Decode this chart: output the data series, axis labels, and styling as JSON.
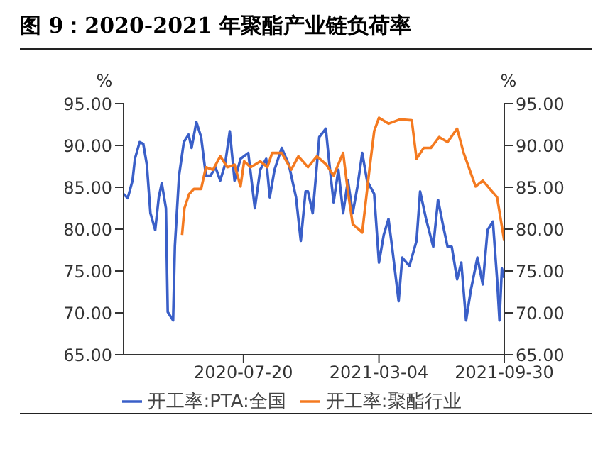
{
  "chart_data": {
    "type": "line",
    "title": "图 9：2020-2021 年聚酯产业链负荷率",
    "ylabel": "%",
    "y2label": "%",
    "xlim": [
      "2020-01-01",
      "2021-09-30"
    ],
    "xticks": [
      "2020-07-20",
      "2021-03-04",
      "2021-09-30"
    ],
    "ylim": [
      65,
      95
    ],
    "yticks": [
      {
        "value": 65,
        "label": "65.00"
      },
      {
        "value": 70,
        "label": "70.00"
      },
      {
        "value": 75,
        "label": "75.00"
      },
      {
        "value": 80,
        "label": "80.00"
      },
      {
        "value": 85,
        "label": "85.00"
      },
      {
        "value": 90,
        "label": "90.00"
      },
      {
        "value": 95,
        "label": "95.00"
      }
    ],
    "y2lim": [
      65,
      95
    ],
    "y2ticks": [
      {
        "value": 65,
        "label": "65.00"
      },
      {
        "value": 70,
        "label": "70.00"
      },
      {
        "value": 75,
        "label": "75.00"
      },
      {
        "value": 80,
        "label": "80.00"
      },
      {
        "value": 85,
        "label": "85.00"
      },
      {
        "value": 90,
        "label": "90.00"
      },
      {
        "value": 95,
        "label": "95.00"
      }
    ],
    "legend": "bottom",
    "marker": "none",
    "line_style": "solid",
    "series": [
      {
        "name": "开工率:PTA:全国",
        "color": "#3a5fc8",
        "x": [
          "2020-01-01",
          "2020-01-08",
          "2020-01-16",
          "2020-01-20",
          "2020-01-28",
          "2020-02-03",
          "2020-02-09",
          "2020-02-15",
          "2020-02-23",
          "2020-02-29",
          "2020-03-05",
          "2020-03-12",
          "2020-03-15",
          "2020-03-24",
          "2020-03-27",
          "2020-04-03",
          "2020-04-11",
          "2020-04-19",
          "2020-04-24",
          "2020-05-02",
          "2020-05-10",
          "2020-05-18",
          "2020-05-26",
          "2020-06-03",
          "2020-06-11",
          "2020-06-19",
          "2020-06-27",
          "2020-07-05",
          "2020-07-15",
          "2020-07-28",
          "2020-08-08",
          "2020-08-17",
          "2020-08-27",
          "2020-09-02",
          "2020-09-10",
          "2020-09-22",
          "2020-10-04",
          "2020-10-16",
          "2020-10-24",
          "2020-11-01",
          "2020-11-05",
          "2020-11-13",
          "2020-11-24",
          "2020-12-05",
          "2020-12-10",
          "2020-12-18",
          "2020-12-26",
          "2021-01-03",
          "2021-01-11",
          "2021-01-19",
          "2021-01-27",
          "2021-02-04",
          "2021-02-12",
          "2021-02-24",
          "2021-03-04",
          "2021-03-12",
          "2021-03-20",
          "2021-03-27",
          "2021-04-06",
          "2021-04-12",
          "2021-04-24",
          "2021-05-06",
          "2021-05-12",
          "2021-05-22",
          "2021-06-03",
          "2021-06-11",
          "2021-06-19",
          "2021-06-27",
          "2021-07-04",
          "2021-07-13",
          "2021-07-20",
          "2021-07-28",
          "2021-08-05",
          "2021-08-16",
          "2021-08-25",
          "2021-09-02",
          "2021-09-11",
          "2021-09-18",
          "2021-09-22",
          "2021-09-26",
          "2021-09-30"
        ],
        "values": [
          84.2,
          83.7,
          85.8,
          88.4,
          90.4,
          90.2,
          87.7,
          81.9,
          79.9,
          83.8,
          85.5,
          82.5,
          70.1,
          69.1,
          78,
          86.4,
          90.4,
          91.3,
          89.7,
          92.8,
          91,
          86.4,
          86.4,
          87.4,
          85.8,
          87.7,
          91.7,
          85.8,
          88.4,
          89.1,
          82.5,
          87.1,
          88.4,
          83.8,
          87.1,
          89.7,
          87.7,
          83.8,
          78.6,
          84.5,
          84.5,
          81.9,
          91,
          92,
          88.4,
          83.2,
          87.1,
          81.9,
          85.8,
          81.9,
          85.1,
          89.1,
          85.8,
          84.2,
          76,
          79.3,
          81.2,
          77.3,
          71.4,
          76.6,
          75.6,
          78.6,
          84.5,
          81.2,
          77.9,
          83.5,
          80.6,
          77.9,
          77.9,
          74,
          76,
          69.1,
          72.7,
          76.6,
          73.4,
          79.9,
          80.9,
          74,
          69.1,
          75.3,
          74.2
        ]
      },
      {
        "name": "开工率:聚酯行业",
        "color": "#f47a20",
        "x": [
          "2020-04-08",
          "2020-04-12",
          "2020-04-20",
          "2020-04-28",
          "2020-05-10",
          "2020-05-18",
          "2020-05-30",
          "2020-06-11",
          "2020-06-23",
          "2020-07-05",
          "2020-07-15",
          "2020-07-21",
          "2020-08-01",
          "2020-08-17",
          "2020-08-29",
          "2020-09-06",
          "2020-09-22",
          "2020-10-08",
          "2020-10-20",
          "2020-11-05",
          "2020-11-20",
          "2020-12-06",
          "2020-12-18",
          "2021-01-03",
          "2021-01-11",
          "2021-01-19",
          "2021-02-04",
          "2021-02-16",
          "2021-02-24",
          "2021-03-04",
          "2021-03-20",
          "2021-04-08",
          "2021-04-28",
          "2021-05-06",
          "2021-05-18",
          "2021-05-30",
          "2021-06-13",
          "2021-06-27",
          "2021-07-13",
          "2021-07-24",
          "2021-08-13",
          "2021-08-25",
          "2021-09-06",
          "2021-09-18",
          "2021-09-30"
        ],
        "values": [
          79.3,
          82.5,
          84.2,
          84.8,
          84.8,
          87.4,
          87.1,
          88.7,
          87.4,
          87.7,
          85.1,
          88.1,
          87.4,
          88.1,
          87.4,
          89.1,
          89.1,
          87.1,
          88.7,
          87.4,
          88.7,
          87.7,
          86.4,
          89.1,
          84.5,
          80.6,
          79.6,
          87.1,
          91.7,
          93.3,
          92.6,
          93.1,
          93,
          88.4,
          89.7,
          89.7,
          91,
          90.4,
          92,
          89.1,
          85.1,
          85.8,
          84.8,
          83.8,
          78.6
        ]
      }
    ]
  }
}
